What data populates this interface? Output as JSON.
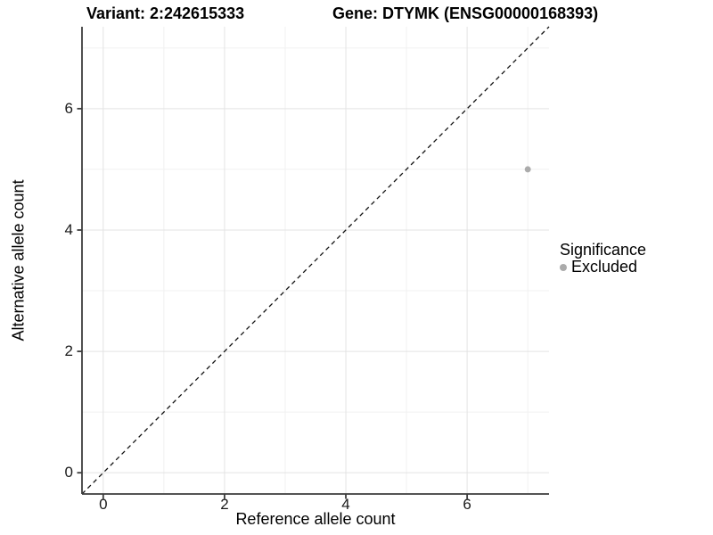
{
  "titles": {
    "variant": "Variant: 2:242615333",
    "gene": "Gene: DTYMK (ENSG00000168393)"
  },
  "chart_data": {
    "type": "scatter",
    "xlabel": "Reference allele count",
    "ylabel": "Alternative allele count",
    "xlim": [
      -0.35,
      7.35
    ],
    "ylim": [
      -0.35,
      7.35
    ],
    "x_major_ticks": [
      0,
      2,
      4,
      6
    ],
    "y_major_ticks": [
      0,
      2,
      4,
      6
    ],
    "x_minor_ticks": [
      1,
      3,
      5,
      7
    ],
    "y_minor_ticks": [
      1,
      3,
      5,
      7
    ],
    "grid": true,
    "reference_line": {
      "type": "identity y=x",
      "style": "dashed"
    },
    "series": [
      {
        "name": "Excluded",
        "points": [
          {
            "x": 7,
            "y": 5
          }
        ],
        "color": "#ababab",
        "point_radius": 3.5
      }
    ],
    "legend": {
      "position": "right",
      "title": "Significance",
      "entries": [
        {
          "label": "Excluded",
          "color": "#ababab"
        }
      ]
    },
    "colors": {
      "panel_background": "#ffffff",
      "grid_major": "#e3e3e3",
      "grid_minor": "#f1f1f1",
      "axis_line": "#3c3c3c",
      "dashed_line": "#111111",
      "tick_text": "#1a1a1a"
    }
  }
}
